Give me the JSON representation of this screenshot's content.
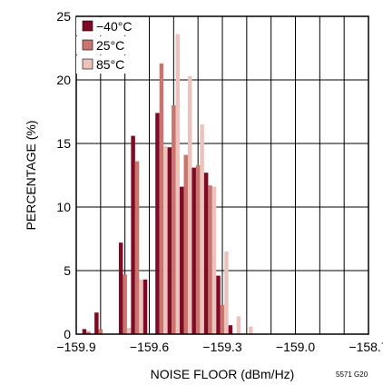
{
  "chart_data": {
    "type": "bar",
    "xlabel": "NOISE FLOOR (dBm/Hz)",
    "ylabel": "PERCENTAGE (%)",
    "xlim": [
      -159.9,
      -158.7
    ],
    "ylim": [
      0,
      25
    ],
    "x_ticks": [
      -159.9,
      -159.6,
      -159.3,
      -159.0,
      -158.7
    ],
    "x_tick_labels": [
      "−159.9",
      "−159.6",
      "−159.3",
      "−159.0",
      "−158.7"
    ],
    "y_ticks": [
      0,
      5,
      10,
      15,
      20,
      25
    ],
    "grid": true,
    "legend_position": "top-left",
    "bin_width": 0.05,
    "bins": [
      -159.85,
      -159.8,
      -159.75,
      -159.7,
      -159.65,
      -159.6,
      -159.55,
      -159.5,
      -159.45,
      -159.4,
      -159.35,
      -159.3,
      -159.25,
      -159.2,
      -159.15,
      -159.1,
      -159.05,
      -159.0,
      -158.95,
      -158.9,
      -158.85,
      -158.8,
      -158.75
    ],
    "series": [
      {
        "name": "−40°C",
        "color": "#7f0a25",
        "values": [
          0.4,
          1.7,
          0,
          7.2,
          15.6,
          4.3,
          17.4,
          14.7,
          11.6,
          13.1,
          12.7,
          4.6,
          0.7,
          0,
          0,
          0,
          0,
          0,
          0,
          0,
          0,
          0,
          0
        ]
      },
      {
        "name": "25°C",
        "color": "#c8756d",
        "values": [
          0.2,
          0.4,
          0,
          4.7,
          13.6,
          0,
          21.3,
          18.0,
          14.1,
          13.3,
          11.7,
          2.3,
          0,
          0,
          0,
          0,
          0,
          0,
          0,
          0,
          0,
          0,
          0
        ]
      },
      {
        "name": "85°C",
        "color": "#ecc2bc",
        "values": [
          0,
          0,
          0,
          0.5,
          4.3,
          0,
          14.8,
          23.6,
          20.3,
          16.5,
          11.6,
          6.5,
          1.4,
          0.6,
          0,
          0,
          0,
          0,
          0,
          0,
          0,
          0,
          0
        ]
      }
    ],
    "note": "5571 G20"
  }
}
